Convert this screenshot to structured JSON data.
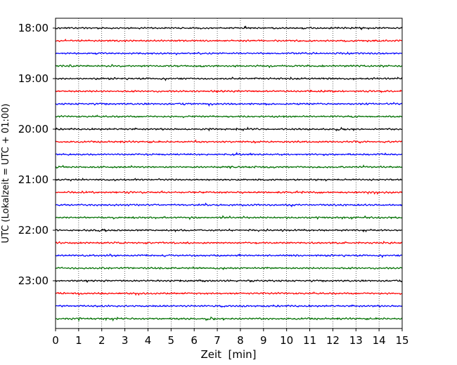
{
  "chart_data": {
    "type": "line",
    "description_kind": "helicorder",
    "xlabel": "Zeit  [min]",
    "ylabel": "UTC (Lokalzeit = UTC + 01:00)",
    "xlim": [
      0,
      15
    ],
    "x_ticks": [
      "0",
      "1",
      "2",
      "3",
      "4",
      "5",
      "6",
      "7",
      "8",
      "9",
      "10",
      "11",
      "12",
      "13",
      "14",
      "15"
    ],
    "y_tick_labels": [
      "18:00",
      "19:00",
      "20:00",
      "21:00",
      "22:00",
      "23:00"
    ],
    "minutes_per_trace": 15,
    "trace_count": 24,
    "trace_colors": [
      "#000000",
      "#ff0000",
      "#0000ff",
      "#007000"
    ],
    "grid": "vertical dotted lines at each minute",
    "series": [
      {
        "start": "18:00",
        "color": "#000000"
      },
      {
        "start": "18:15",
        "color": "#ff0000"
      },
      {
        "start": "18:30",
        "color": "#0000ff"
      },
      {
        "start": "18:45",
        "color": "#007000"
      },
      {
        "start": "19:00",
        "color": "#000000"
      },
      {
        "start": "19:15",
        "color": "#ff0000"
      },
      {
        "start": "19:30",
        "color": "#0000ff"
      },
      {
        "start": "19:45",
        "color": "#007000"
      },
      {
        "start": "20:00",
        "color": "#000000"
      },
      {
        "start": "20:15",
        "color": "#ff0000"
      },
      {
        "start": "20:30",
        "color": "#0000ff"
      },
      {
        "start": "20:45",
        "color": "#007000"
      },
      {
        "start": "21:00",
        "color": "#000000"
      },
      {
        "start": "21:15",
        "color": "#ff0000"
      },
      {
        "start": "21:30",
        "color": "#0000ff"
      },
      {
        "start": "21:45",
        "color": "#007000"
      },
      {
        "start": "22:00",
        "color": "#000000"
      },
      {
        "start": "22:15",
        "color": "#ff0000"
      },
      {
        "start": "22:30",
        "color": "#0000ff"
      },
      {
        "start": "22:45",
        "color": "#007000"
      },
      {
        "start": "23:00",
        "color": "#000000"
      },
      {
        "start": "23:15",
        "color": "#ff0000"
      },
      {
        "start": "23:30",
        "color": "#0000ff"
      },
      {
        "start": "23:45",
        "color": "#007000"
      }
    ]
  }
}
